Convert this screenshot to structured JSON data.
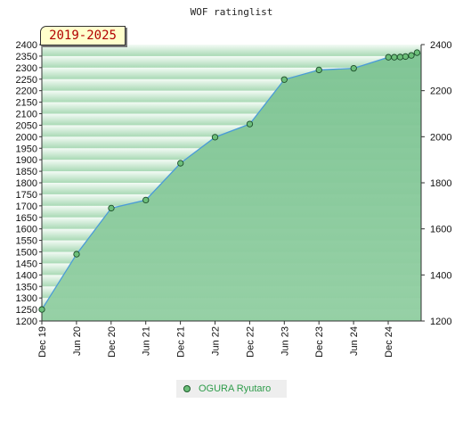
{
  "chart_data": {
    "type": "area",
    "title": "WOF ratinglist",
    "badge": "2019-2025",
    "x_ticks": [
      "Dec 19",
      "Jun 20",
      "Dec 20",
      "Jun 21",
      "Dec 21",
      "Jun 22",
      "Dec 22",
      "Jun 23",
      "Dec 23",
      "Jun 24",
      "Dec 24"
    ],
    "left_ylim": [
      1200,
      2400
    ],
    "left_yticks": [
      1200,
      1250,
      1300,
      1350,
      1400,
      1450,
      1500,
      1550,
      1600,
      1650,
      1700,
      1750,
      1800,
      1850,
      1900,
      1950,
      2000,
      2050,
      2100,
      2150,
      2200,
      2250,
      2300,
      2350,
      2400
    ],
    "right_yticks": [
      1200,
      1400,
      1600,
      1800,
      2000,
      2200,
      2400
    ],
    "series": [
      {
        "name": "OGURA Ryutaro",
        "x": [
          "2019-12",
          "2020-06",
          "2020-12",
          "2021-06",
          "2021-12",
          "2022-06",
          "2022-12",
          "2023-06",
          "2023-12",
          "2024-06",
          "2024-12",
          "2025-01",
          "2025-02",
          "2025-03",
          "2025-04",
          "2025-05"
        ],
        "values": [
          1250,
          1490,
          1690,
          1725,
          1885,
          1998,
          2055,
          2248,
          2290,
          2297,
          2345,
          2345,
          2346,
          2348,
          2353,
          2365
        ]
      }
    ],
    "legend_position": "bottom-center",
    "colors": {
      "area": "#8fcc9e",
      "line": "#4a9bd8",
      "marker": "#6cbf7a",
      "band_light": "#e8f5eb",
      "band_dark": "#a8d9b4"
    }
  }
}
